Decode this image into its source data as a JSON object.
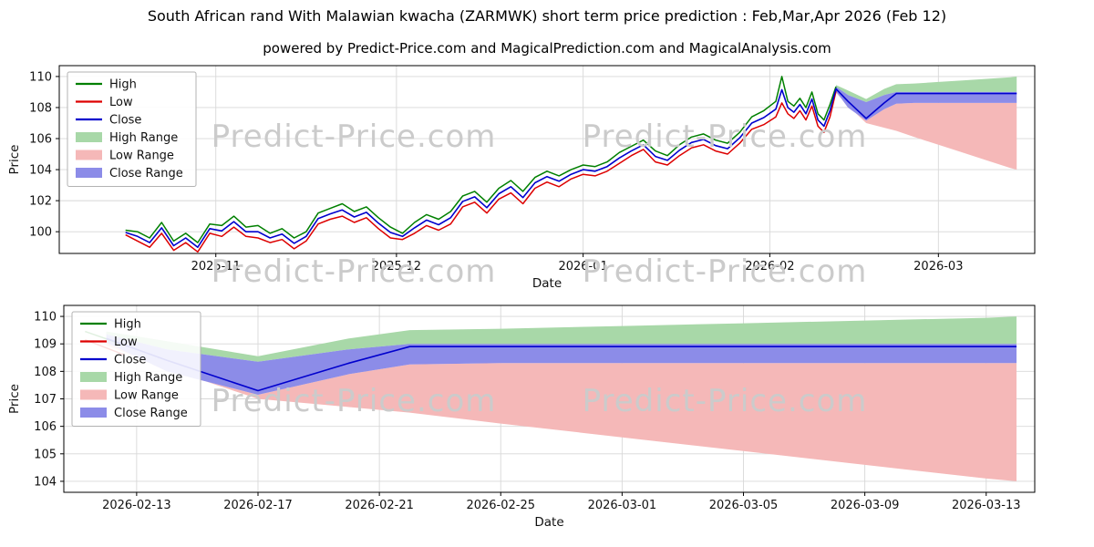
{
  "title": "South African rand With Malawian kwacha (ZARMWK) short term price prediction : Feb,Mar,Apr 2026 (Feb 12)",
  "subtitle": "powered by Predict-Price.com and MagicalPrediction.com and MagicalAnalysis.com",
  "watermark": "Predict-Price.com",
  "chart_data": [
    {
      "type": "line",
      "name": "history-with-forecast-chart",
      "xlabel": "Date",
      "ylabel": "Price",
      "x_unit": "days since 2025-10-15",
      "xlim": [
        -9,
        153
      ],
      "ylim": [
        98.6,
        110.7
      ],
      "grid": true,
      "legend_position": "upper-left",
      "xticks": [
        {
          "v": 17,
          "label": "2025-11"
        },
        {
          "v": 47,
          "label": "2025-12"
        },
        {
          "v": 78,
          "label": "2026-01"
        },
        {
          "v": 109,
          "label": "2026-02"
        },
        {
          "v": 137,
          "label": "2026-03"
        }
      ],
      "yticks": [
        100,
        102,
        104,
        106,
        108,
        110
      ],
      "line_colors": {
        "high": "#008000",
        "low": "#dd0000",
        "close": "#0000cd"
      },
      "band_colors": {
        "high_range": "#a8d8a8",
        "low_range": "#f5b8b8",
        "close_range": "#8c8ce8"
      },
      "legend": [
        {
          "label": "High",
          "swatch": "line",
          "color": "#008000"
        },
        {
          "label": "Low",
          "swatch": "line",
          "color": "#dd0000"
        },
        {
          "label": "Close",
          "swatch": "line",
          "color": "#0000cd"
        },
        {
          "label": "High Range",
          "swatch": "band",
          "color": "#a8d8a8"
        },
        {
          "label": "Low Range",
          "swatch": "band",
          "color": "#f5b8b8"
        },
        {
          "label": "Close Range",
          "swatch": "band",
          "color": "#8c8ce8"
        }
      ],
      "series": {
        "tail_only": false,
        "x": [
          2,
          4,
          6,
          8,
          10,
          12,
          14,
          16,
          18,
          20,
          22,
          24,
          26,
          28,
          30,
          32,
          34,
          36,
          38,
          40,
          42,
          44,
          46,
          48,
          50,
          52,
          54,
          56,
          58,
          60,
          62,
          64,
          66,
          68,
          70,
          72,
          74,
          76,
          78,
          80,
          82,
          84,
          86,
          88,
          90,
          92,
          94,
          96,
          98,
          100,
          102,
          104,
          106,
          108,
          110,
          111,
          112,
          113,
          114,
          115,
          116,
          117,
          118,
          119,
          120
        ],
        "high": [
          100.1,
          100.0,
          99.6,
          100.6,
          99.4,
          99.9,
          99.3,
          100.5,
          100.4,
          101.0,
          100.3,
          100.4,
          99.9,
          100.2,
          99.6,
          100.0,
          101.2,
          101.5,
          101.8,
          101.3,
          101.6,
          100.9,
          100.3,
          99.9,
          100.6,
          101.1,
          100.8,
          101.3,
          102.3,
          102.6,
          101.9,
          102.8,
          103.3,
          102.6,
          103.5,
          103.9,
          103.6,
          104.0,
          104.3,
          104.2,
          104.5,
          105.1,
          105.5,
          105.9,
          105.2,
          104.9,
          105.6,
          106.1,
          106.3,
          105.9,
          105.7,
          106.4,
          107.4,
          107.8,
          108.4,
          110.0,
          108.4,
          108.1,
          108.6,
          108.0,
          109.0,
          107.6,
          107.2,
          108.2,
          109.35
        ],
        "low": [
          99.8,
          99.4,
          99.0,
          99.9,
          98.8,
          99.3,
          98.7,
          99.9,
          99.7,
          100.3,
          99.7,
          99.6,
          99.3,
          99.5,
          98.9,
          99.4,
          100.5,
          100.8,
          101.0,
          100.6,
          100.9,
          100.2,
          99.6,
          99.5,
          99.9,
          100.4,
          100.1,
          100.5,
          101.6,
          101.9,
          101.2,
          102.1,
          102.5,
          101.8,
          102.8,
          103.2,
          102.9,
          103.4,
          103.7,
          103.6,
          103.9,
          104.4,
          104.9,
          105.3,
          104.5,
          104.3,
          104.9,
          105.4,
          105.6,
          105.2,
          105.0,
          105.7,
          106.6,
          106.9,
          107.4,
          108.3,
          107.6,
          107.3,
          107.8,
          107.2,
          108.1,
          106.8,
          106.4,
          107.4,
          109.05
        ],
        "close": [
          99.95,
          99.7,
          99.3,
          100.25,
          99.1,
          99.6,
          99.0,
          100.2,
          100.05,
          100.65,
          100.0,
          100.0,
          99.6,
          99.85,
          99.25,
          99.7,
          100.85,
          101.15,
          101.4,
          100.95,
          101.25,
          100.55,
          99.95,
          99.7,
          100.25,
          100.75,
          100.45,
          100.9,
          101.95,
          102.25,
          101.55,
          102.45,
          102.9,
          102.2,
          103.15,
          103.55,
          103.25,
          103.7,
          104.0,
          103.9,
          104.2,
          104.75,
          105.2,
          105.6,
          104.85,
          104.6,
          105.25,
          105.75,
          105.95,
          105.55,
          105.35,
          106.05,
          107.0,
          107.35,
          107.9,
          109.15,
          108.0,
          107.7,
          108.2,
          107.6,
          108.55,
          107.2,
          106.8,
          107.8,
          109.2
        ]
      },
      "forecast": {
        "x": [
          120,
          122,
          125,
          128,
          130,
          133,
          137,
          141,
          145,
          149,
          150
        ],
        "close": [
          109.2,
          108.4,
          107.3,
          108.3,
          108.9,
          108.9,
          108.9,
          108.9,
          108.9,
          108.9,
          108.9
        ],
        "close_top": [
          109.35,
          108.8,
          108.35,
          108.8,
          109.0,
          109.0,
          109.0,
          109.0,
          109.0,
          109.0,
          109.0
        ],
        "close_bottom": [
          109.05,
          108.0,
          107.15,
          107.9,
          108.25,
          108.3,
          108.3,
          108.3,
          108.3,
          108.3,
          108.3
        ],
        "high_top": [
          109.45,
          109.1,
          108.55,
          109.2,
          109.5,
          109.55,
          109.65,
          109.75,
          109.85,
          109.95,
          110.0
        ],
        "low_bottom": [
          108.95,
          108.1,
          107.0,
          106.7,
          106.5,
          106.1,
          105.6,
          105.1,
          104.6,
          104.1,
          104.0
        ]
      }
    },
    {
      "type": "line",
      "name": "forecast-detail-chart",
      "xlabel": "Date",
      "ylabel": "Price",
      "x_unit": "days since 2025-10-15",
      "xlim": [
        118.6,
        150.6
      ],
      "ylim": [
        103.6,
        110.4
      ],
      "grid": true,
      "legend_position": "upper-left",
      "xticks": [
        {
          "v": 121,
          "label": "2026-02-13"
        },
        {
          "v": 125,
          "label": "2026-02-17"
        },
        {
          "v": 129,
          "label": "2026-02-21"
        },
        {
          "v": 133,
          "label": "2026-02-25"
        },
        {
          "v": 137,
          "label": "2026-03-01"
        },
        {
          "v": 141,
          "label": "2026-03-05"
        },
        {
          "v": 145,
          "label": "2026-03-09"
        },
        {
          "v": 149,
          "label": "2026-03-13"
        }
      ],
      "yticks": [
        104,
        105,
        106,
        107,
        108,
        109,
        110
      ],
      "line_colors": {
        "high": "#008000",
        "low": "#dd0000",
        "close": "#0000cd"
      },
      "band_colors": {
        "high_range": "#a8d8a8",
        "low_range": "#f5b8b8",
        "close_range": "#8c8ce8"
      },
      "legend": [
        {
          "label": "High",
          "swatch": "line",
          "color": "#008000"
        },
        {
          "label": "Low",
          "swatch": "line",
          "color": "#dd0000"
        },
        {
          "label": "Close",
          "swatch": "line",
          "color": "#0000cd"
        },
        {
          "label": "High Range",
          "swatch": "band",
          "color": "#a8d8a8"
        },
        {
          "label": "Low Range",
          "swatch": "band",
          "color": "#f5b8b8"
        },
        {
          "label": "Close Range",
          "swatch": "band",
          "color": "#8c8ce8"
        }
      ],
      "series": {
        "tail_only": true,
        "x": [
          119.3,
          120.6
        ],
        "high": [
          109.45,
          108.95
        ],
        "low": [
          109.15,
          108.6
        ],
        "close": [
          109.3,
          108.9
        ]
      },
      "forecast": {
        "x": [
          120,
          122,
          125,
          128,
          130,
          133,
          137,
          141,
          145,
          149,
          150
        ],
        "close": [
          109.2,
          108.4,
          107.3,
          108.3,
          108.9,
          108.9,
          108.9,
          108.9,
          108.9,
          108.9,
          108.9
        ],
        "close_top": [
          109.35,
          108.8,
          108.35,
          108.8,
          109.0,
          109.0,
          109.0,
          109.0,
          109.0,
          109.0,
          109.0
        ],
        "close_bottom": [
          109.05,
          108.0,
          107.15,
          107.9,
          108.25,
          108.3,
          108.3,
          108.3,
          108.3,
          108.3,
          108.3
        ],
        "high_top": [
          109.45,
          109.1,
          108.55,
          109.2,
          109.5,
          109.55,
          109.65,
          109.75,
          109.85,
          109.95,
          110.0
        ],
        "low_bottom": [
          108.95,
          108.1,
          107.0,
          106.7,
          106.5,
          106.1,
          105.6,
          105.1,
          104.6,
          104.1,
          104.0
        ]
      }
    }
  ]
}
